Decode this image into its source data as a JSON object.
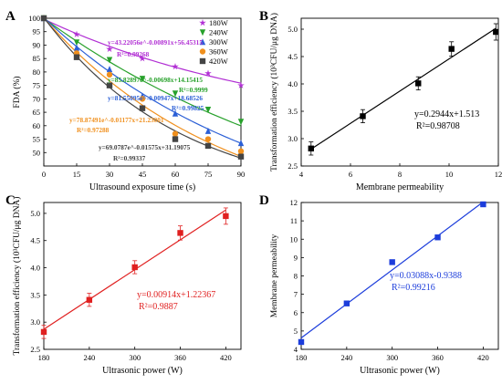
{
  "chart_data": [
    {
      "panel": "A",
      "type": "scatter",
      "xlabel": "Ultrasound exposure time (s)",
      "ylabel": "FDA (%)",
      "xlim": [
        0,
        90
      ],
      "ylim": [
        45,
        100
      ],
      "xticks": [
        0,
        15,
        30,
        45,
        60,
        75,
        90
      ],
      "yticks": [
        50,
        55,
        60,
        65,
        70,
        75,
        80,
        85,
        90,
        95,
        100
      ],
      "legend_position": "top-right",
      "series": [
        {
          "name": "180W",
          "color": "#b12fd4",
          "marker": "star",
          "x": [
            0,
            15,
            30,
            45,
            60,
            75,
            90
          ],
          "y": [
            100,
            94,
            88.5,
            85,
            82,
            79.5,
            75
          ],
          "fit": {
            "a": 43.22056,
            "k": 0.00891,
            "c": 56.45315
          },
          "equation": "y=43.22056e^-0.00891x+56.45315",
          "r2": "R²=0.99268"
        },
        {
          "name": "240W",
          "color": "#27a12b",
          "marker": "triangle-down",
          "x": [
            0,
            15,
            30,
            45,
            60,
            75,
            90
          ],
          "y": [
            100,
            91,
            84.5,
            77.5,
            72,
            66,
            61.5
          ],
          "fit": {
            "a": 85.82897,
            "k": 0.00698,
            "c": 14.15415
          },
          "equation": "y=85.82897e^-0.00698x+14.15415",
          "r2": "R²=0.9999"
        },
        {
          "name": "300W",
          "color": "#2b5fd6",
          "marker": "triangle-up",
          "x": [
            0,
            15,
            30,
            45,
            60,
            75,
            90
          ],
          "y": [
            100,
            89,
            81,
            71,
            64.5,
            58,
            53.5
          ],
          "fit": {
            "a": 81.55095,
            "k": 0.00947,
            "c": 18.68526
          },
          "equation": "y=81.55095e^-0.00947x+18.68526",
          "r2": "R²=0.99825"
        },
        {
          "name": "360W",
          "color": "#f0901e",
          "marker": "circle",
          "x": [
            0,
            15,
            30,
            45,
            60,
            75,
            90
          ],
          "y": [
            100,
            87,
            79,
            70,
            57,
            55,
            50.5
          ],
          "fit": {
            "a": 78.87491,
            "k": 0.01177,
            "c": 21.23001
          },
          "equation": "y=78.87491e^-0.01177x+21.23001",
          "r2": "R²=0.97288"
        },
        {
          "name": "420W",
          "color": "#444444",
          "marker": "square",
          "x": [
            0,
            15,
            30,
            45,
            60,
            75,
            90
          ],
          "y": [
            100,
            85.5,
            75,
            66.5,
            55,
            52.5,
            48.5
          ],
          "fit": {
            "a": 69.0787,
            "k": 0.01575,
            "c": 31.19075
          },
          "equation": "y=69.0787e^-0.01575x+31.19075",
          "r2": "R²=0.99337"
        }
      ]
    },
    {
      "panel": "B",
      "type": "scatter",
      "xlabel": "Membrane permeability",
      "ylabel": "Transformation efficiency (10³CFU/μg DNA)",
      "xlim": [
        4,
        12
      ],
      "ylim": [
        2.5,
        5.2
      ],
      "xticks": [
        4,
        6,
        8,
        10,
        12
      ],
      "yticks": [
        2.5,
        3.0,
        3.5,
        4.0,
        4.5,
        5.0
      ],
      "x": [
        4.4,
        6.5,
        8.75,
        10.1,
        11.9
      ],
      "y": [
        2.82,
        3.41,
        4.01,
        4.64,
        4.95
      ],
      "yerr": [
        0.12,
        0.12,
        0.12,
        0.13,
        0.15
      ],
      "fit": {
        "slope": 0.2944,
        "intercept": 1.513,
        "x_range": [
          4.4,
          11.9
        ]
      },
      "equation": "y=0.2944x+1.513",
      "r2": "R²=0.98708",
      "color": "#000000"
    },
    {
      "panel": "C",
      "type": "scatter",
      "xlabel": "Ultrasonic power (W)",
      "ylabel": "Transformation efficiency (10³CFU/μg DNA)",
      "xlim": [
        180,
        440
      ],
      "ylim": [
        2.5,
        5.2
      ],
      "xticks": [
        180,
        240,
        300,
        360,
        420
      ],
      "yticks": [
        2.5,
        3.0,
        3.5,
        4.0,
        4.5,
        5.0
      ],
      "x": [
        180,
        240,
        300,
        360,
        420
      ],
      "y": [
        2.82,
        3.41,
        4.01,
        4.64,
        4.95
      ],
      "yerr": [
        0.12,
        0.12,
        0.12,
        0.13,
        0.15
      ],
      "fit": {
        "slope": 0.00914,
        "intercept": 1.22367,
        "x_range": [
          180,
          420
        ]
      },
      "equation": "y=0.00914x+1.22367",
      "r2": "R²=0.9887",
      "color": "#e02020"
    },
    {
      "panel": "D",
      "type": "scatter",
      "xlabel": "Ultrasonic power (W)",
      "ylabel": "Membrane permeability",
      "xlim": [
        180,
        440
      ],
      "ylim": [
        4,
        12
      ],
      "xticks": [
        180,
        240,
        300,
        360,
        420
      ],
      "yticks": [
        4,
        5,
        6,
        7,
        8,
        9,
        10,
        11,
        12
      ],
      "x": [
        180,
        240,
        300,
        360,
        420
      ],
      "y": [
        4.4,
        6.5,
        8.75,
        10.1,
        11.9
      ],
      "fit": {
        "slope": 0.03088,
        "intercept": -0.9388,
        "x_range": [
          180,
          420
        ]
      },
      "equation": "y=0.03088x-0.9388",
      "r2": "R²=0.99216",
      "color": "#1c3ddb"
    }
  ]
}
